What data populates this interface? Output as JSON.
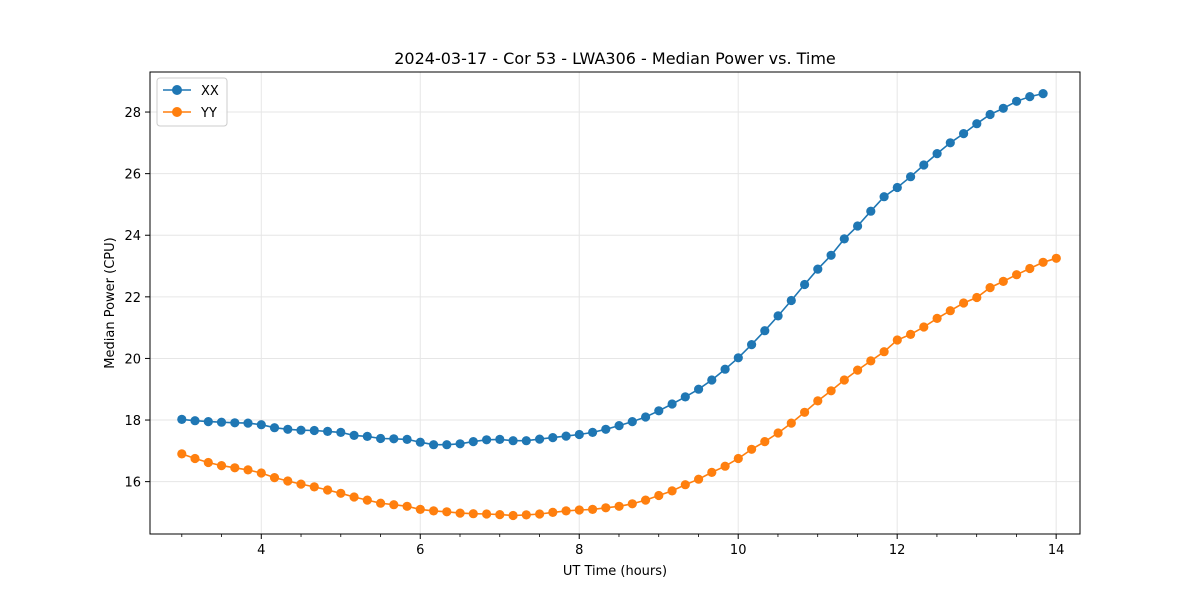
{
  "chart_data": {
    "type": "line",
    "title": "2024-03-17 - Cor 53 - LWA306 - Median Power vs. Time",
    "xlabel": "UT Time (hours)",
    "ylabel": "Median Power (CPU)",
    "xlim": [
      2.6,
      14.3
    ],
    "ylim": [
      14.3,
      29.3
    ],
    "xticks": [
      4,
      6,
      8,
      10,
      12,
      14
    ],
    "yticks": [
      16,
      18,
      20,
      22,
      24,
      26,
      28
    ],
    "grid": true,
    "legend_position": "upper-left",
    "x_start": 3.0,
    "x_step": 0.1667,
    "series": [
      {
        "name": "XX",
        "color": "#1f77b4",
        "values": [
          18.02,
          17.98,
          17.95,
          17.93,
          17.91,
          17.9,
          17.85,
          17.75,
          17.7,
          17.67,
          17.66,
          17.63,
          17.6,
          17.5,
          17.47,
          17.4,
          17.39,
          17.37,
          17.28,
          17.2,
          17.2,
          17.23,
          17.3,
          17.36,
          17.37,
          17.33,
          17.33,
          17.38,
          17.43,
          17.48,
          17.53,
          17.6,
          17.7,
          17.82,
          17.95,
          18.1,
          18.3,
          18.52,
          18.75,
          19.0,
          19.3,
          19.65,
          20.02,
          20.45,
          20.9,
          21.38,
          21.88,
          22.4,
          22.9,
          23.35,
          23.88,
          24.3,
          24.78,
          25.25,
          25.55,
          25.9,
          26.28,
          26.65,
          27.0,
          27.3,
          27.62,
          27.92,
          28.12,
          28.35,
          28.5,
          28.6
        ]
      },
      {
        "name": "YY",
        "color": "#ff7f0e",
        "values": [
          16.9,
          16.75,
          16.62,
          16.52,
          16.45,
          16.38,
          16.28,
          16.13,
          16.02,
          15.92,
          15.83,
          15.73,
          15.62,
          15.5,
          15.4,
          15.3,
          15.25,
          15.2,
          15.1,
          15.05,
          15.02,
          14.98,
          14.96,
          14.95,
          14.93,
          14.9,
          14.92,
          14.95,
          15.0,
          15.05,
          15.08,
          15.1,
          15.15,
          15.2,
          15.28,
          15.4,
          15.55,
          15.7,
          15.9,
          16.08,
          16.3,
          16.5,
          16.75,
          17.05,
          17.3,
          17.58,
          17.9,
          18.25,
          18.62,
          18.95,
          19.3,
          19.62,
          19.92,
          20.22,
          20.6,
          20.78,
          21.02,
          21.3,
          21.55,
          21.8,
          21.98,
          22.3,
          22.5,
          22.72,
          22.92,
          23.12,
          23.25
        ]
      }
    ]
  }
}
